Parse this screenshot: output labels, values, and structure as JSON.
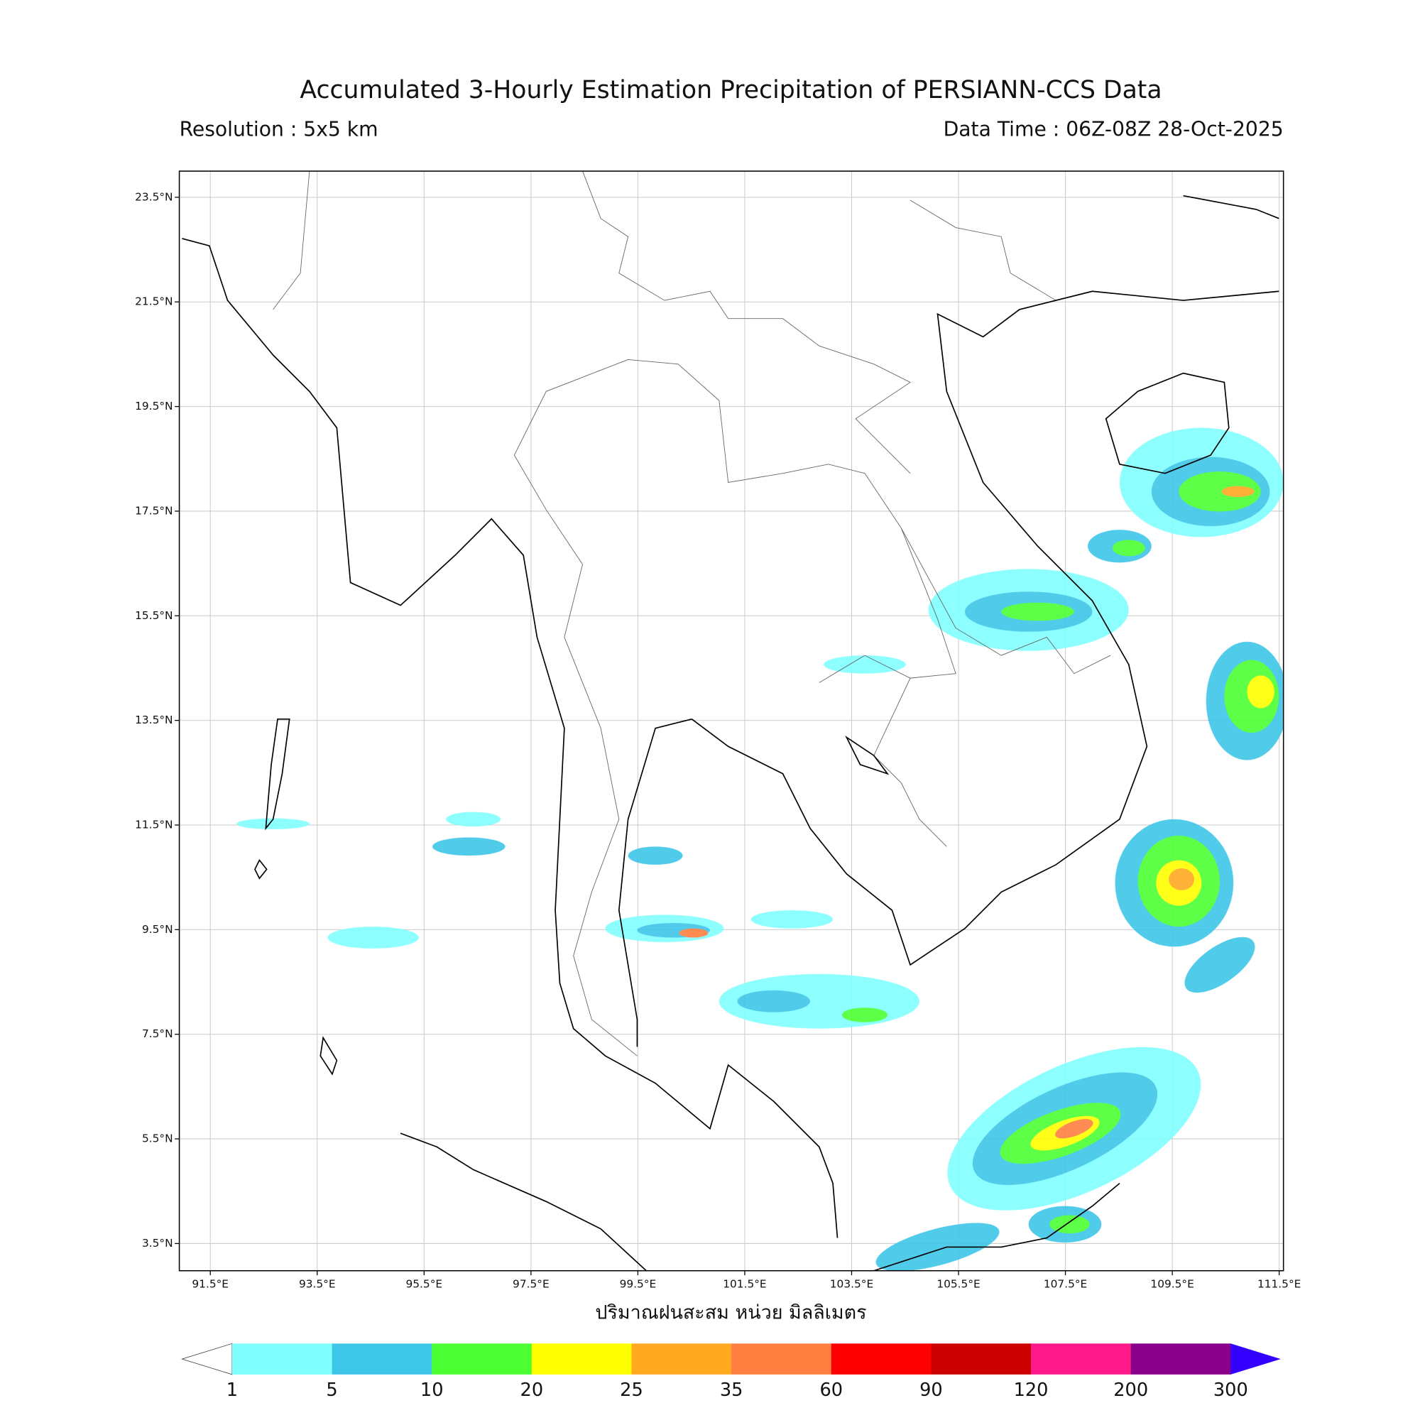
{
  "header": {
    "title": "Accumulated 3-Hourly Estimation Precipitation of PERSIANN-CCS Data",
    "resolution": "Resolution : 5x5 km",
    "data_time": "Data Time : 06Z-08Z 28-Oct-2025"
  },
  "map": {
    "lon_ticks": [
      {
        "value": 91.5,
        "label": "91.5°E"
      },
      {
        "value": 93.5,
        "label": "93.5°E"
      },
      {
        "value": 95.5,
        "label": "95.5°E"
      },
      {
        "value": 97.5,
        "label": "97.5°E"
      },
      {
        "value": 99.5,
        "label": "99.5°E"
      },
      {
        "value": 101.5,
        "label": "101.5°E"
      },
      {
        "value": 103.5,
        "label": "103.5°E"
      },
      {
        "value": 105.5,
        "label": "105.5°E"
      },
      {
        "value": 107.5,
        "label": "107.5°E"
      },
      {
        "value": 109.5,
        "label": "109.5°E"
      },
      {
        "value": 111.5,
        "label": "111.5°E"
      }
    ],
    "lat_ticks": [
      {
        "value": 23.5,
        "label": "23.5°N"
      },
      {
        "value": 21.5,
        "label": "21.5°N"
      },
      {
        "value": 19.5,
        "label": "19.5°N"
      },
      {
        "value": 17.5,
        "label": "17.5°N"
      },
      {
        "value": 15.5,
        "label": "15.5°N"
      },
      {
        "value": 13.5,
        "label": "13.5°N"
      },
      {
        "value": 11.5,
        "label": "11.5°N"
      },
      {
        "value": 9.5,
        "label": "9.5°N"
      },
      {
        "value": 7.5,
        "label": "7.5°N"
      },
      {
        "value": 5.5,
        "label": "5.5°N"
      },
      {
        "value": 3.5,
        "label": "3.5°N"
      }
    ],
    "grid": true,
    "colorbar": {
      "label": "ปริมาณฝนสะสม หน่วย มิลลิเมตร",
      "bounds": [
        1,
        5,
        10,
        20,
        25,
        35,
        60,
        90,
        120,
        200,
        300
      ],
      "colors": [
        "#80ffff",
        "#3ec6e8",
        "#4cff33",
        "#ffff00",
        "#ffa820",
        "#ff7f40",
        "#ff0000",
        "#cc0000",
        "#ff1a8c",
        "#8b008b"
      ],
      "over_color": "#3300ff"
    }
  }
}
